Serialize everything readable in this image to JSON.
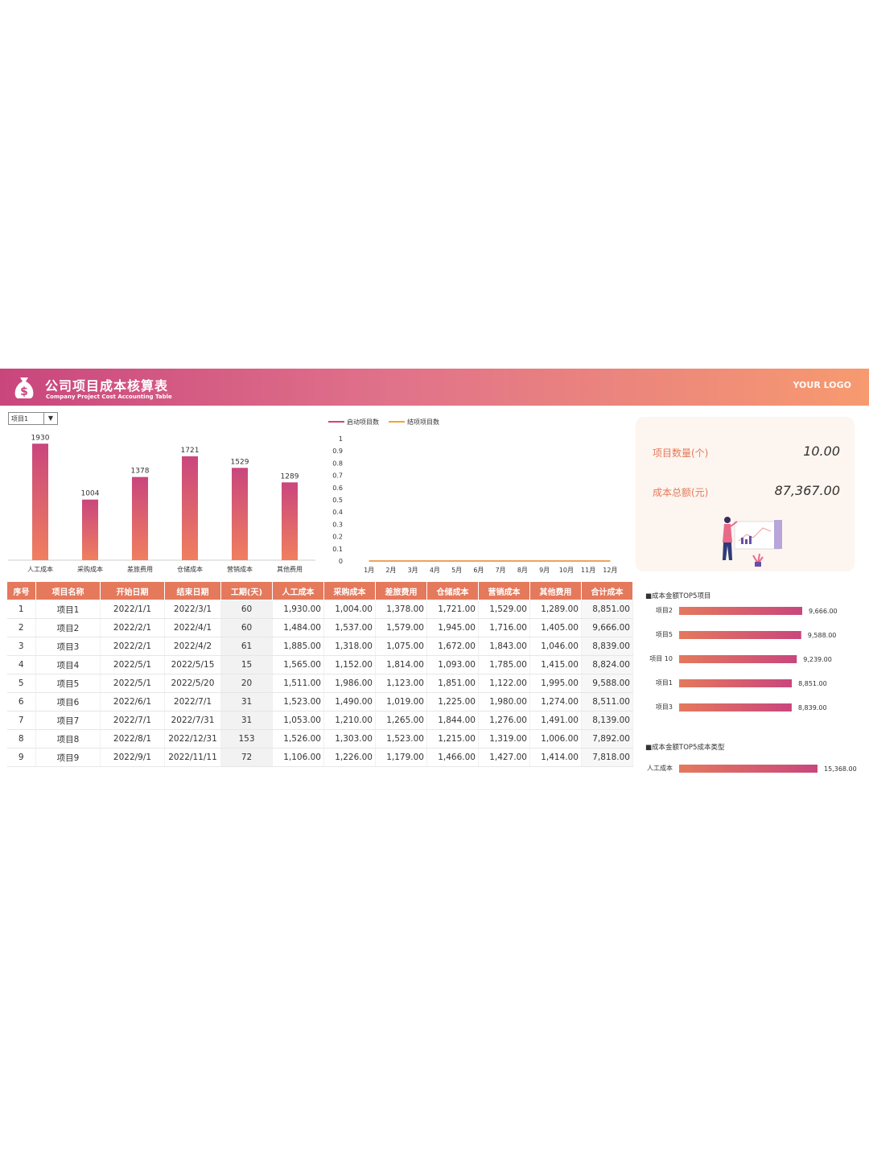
{
  "header": {
    "title": "公司项目成本核算表",
    "subtitle": "Company Project Cost Accounting Table",
    "logo": "YOUR LOGO",
    "icon": "money-bag-icon"
  },
  "dropdown": {
    "selected": "项目1"
  },
  "kpi": {
    "count_label": "项目数量(个)",
    "count_value": "10.00",
    "total_label": "成本总额(元)",
    "total_value": "87,367.00"
  },
  "chart_data": [
    {
      "type": "bar",
      "categories": [
        "人工成本",
        "采购成本",
        "差旅费用",
        "仓储成本",
        "营销成本",
        "其他费用"
      ],
      "values": [
        1930,
        1004,
        1378,
        1721,
        1529,
        1289
      ],
      "ylim": [
        0,
        2000
      ],
      "colors": [
        "#c9467d",
        "#f07f5f"
      ]
    },
    {
      "type": "line",
      "x": [
        "1月",
        "2月",
        "3月",
        "4月",
        "5月",
        "6月",
        "7月",
        "8月",
        "9月",
        "10月",
        "11月",
        "12月"
      ],
      "series": [
        {
          "name": "启动项目数",
          "values": [
            0,
            0,
            0,
            0,
            0,
            0,
            0,
            0,
            0,
            0,
            0,
            0
          ],
          "color": "#c9467d"
        },
        {
          "name": "结项项目数",
          "values": [
            0,
            0,
            0,
            0,
            0,
            0,
            0,
            0,
            0,
            0,
            0,
            0
          ],
          "color": "#f2a33a"
        }
      ],
      "ylim": [
        0,
        1
      ],
      "yticks": [
        "0",
        "0.1",
        "0.2",
        "0.3",
        "0.4",
        "0.5",
        "0.6",
        "0.7",
        "0.8",
        "0.9",
        "1"
      ],
      "legend": "top"
    },
    {
      "type": "bar",
      "orientation": "horizontal",
      "title": "■成本金额TOP5项目",
      "categories": [
        "项目2",
        "项目5",
        "项目 10",
        "项目1",
        "项目3"
      ],
      "values": [
        9666.0,
        9588.0,
        9239.0,
        8851.0,
        8839.0
      ],
      "labels": [
        "9,666.00",
        "9,588.00",
        "9,239.00",
        "8,851.00",
        "8,839.00"
      ],
      "colors": [
        "#e4795c",
        "#c9467d"
      ]
    },
    {
      "type": "bar",
      "orientation": "horizontal",
      "title": "■成本金额TOP5成本类型",
      "categories": [
        "人工成本"
      ],
      "values": [
        15368.0
      ],
      "labels": [
        "15,368.00"
      ],
      "colors": [
        "#e4795c",
        "#c9467d"
      ]
    }
  ],
  "table": {
    "columns": [
      "序号",
      "项目名称",
      "开始日期",
      "结束日期",
      "工期(天)",
      "人工成本",
      "采购成本",
      "差旅费用",
      "仓储成本",
      "营销成本",
      "其他费用",
      "合计成本"
    ],
    "rows": [
      [
        "1",
        "项目1",
        "2022/1/1",
        "2022/3/1",
        "60",
        "1,930.00",
        "1,004.00",
        "1,378.00",
        "1,721.00",
        "1,529.00",
        "1,289.00",
        "8,851.00"
      ],
      [
        "2",
        "项目2",
        "2022/2/1",
        "2022/4/1",
        "60",
        "1,484.00",
        "1,537.00",
        "1,579.00",
        "1,945.00",
        "1,716.00",
        "1,405.00",
        "9,666.00"
      ],
      [
        "3",
        "项目3",
        "2022/2/1",
        "2022/4/2",
        "61",
        "1,885.00",
        "1,318.00",
        "1,075.00",
        "1,672.00",
        "1,843.00",
        "1,046.00",
        "8,839.00"
      ],
      [
        "4",
        "项目4",
        "2022/5/1",
        "2022/5/15",
        "15",
        "1,565.00",
        "1,152.00",
        "1,814.00",
        "1,093.00",
        "1,785.00",
        "1,415.00",
        "8,824.00"
      ],
      [
        "5",
        "项目5",
        "2022/5/1",
        "2022/5/20",
        "20",
        "1,511.00",
        "1,986.00",
        "1,123.00",
        "1,851.00",
        "1,122.00",
        "1,995.00",
        "9,588.00"
      ],
      [
        "6",
        "项目6",
        "2022/6/1",
        "2022/7/1",
        "31",
        "1,523.00",
        "1,490.00",
        "1,019.00",
        "1,225.00",
        "1,980.00",
        "1,274.00",
        "8,511.00"
      ],
      [
        "7",
        "项目7",
        "2022/7/1",
        "2022/7/31",
        "31",
        "1,053.00",
        "1,210.00",
        "1,265.00",
        "1,844.00",
        "1,276.00",
        "1,491.00",
        "8,139.00"
      ],
      [
        "8",
        "项目8",
        "2022/8/1",
        "2022/12/31",
        "153",
        "1,526.00",
        "1,303.00",
        "1,523.00",
        "1,215.00",
        "1,319.00",
        "1,006.00",
        "7,892.00"
      ],
      [
        "9",
        "项目9",
        "2022/9/1",
        "2022/11/11",
        "72",
        "1,106.00",
        "1,226.00",
        "1,179.00",
        "1,466.00",
        "1,427.00",
        "1,414.00",
        "7,818.00"
      ]
    ]
  }
}
